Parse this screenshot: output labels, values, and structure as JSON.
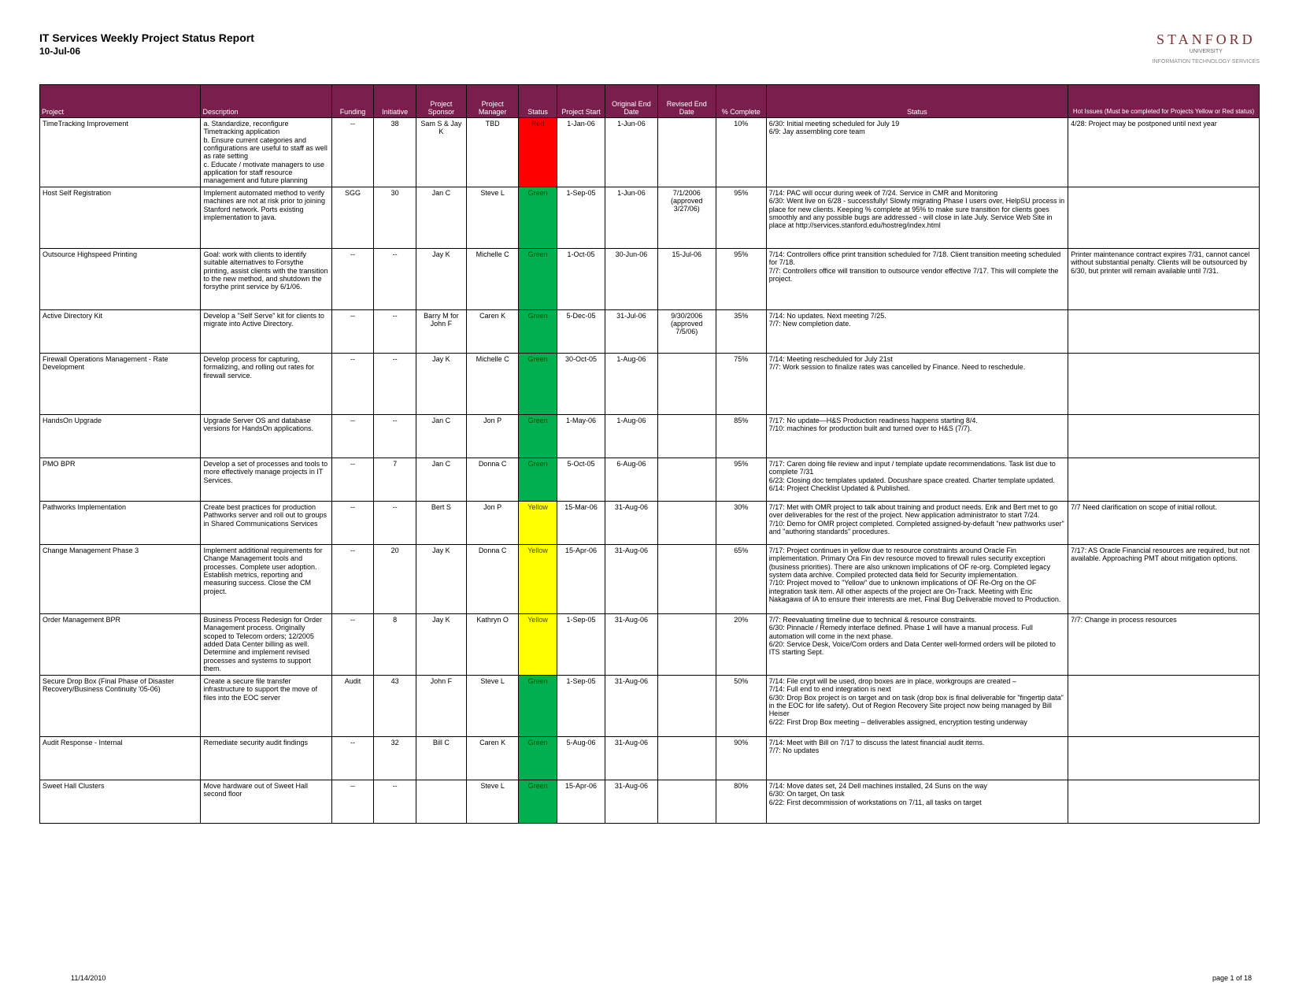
{
  "header": {
    "title": "IT Services Weekly Project Status Report",
    "date": "10-Jul-06",
    "logo_main": "STANFORD",
    "logo_sub": "UNIVERSITY",
    "logo_tag": "INFORMATION TECHNOLOGY SERVICES"
  },
  "colors": {
    "header_bg": "#7a1f4d",
    "status_red": "#ff0000",
    "status_green": "#00b050",
    "status_yellow": "#ffff00"
  },
  "columns": [
    "Project",
    "Description",
    "Funding",
    "Initiative",
    "Project Sponsor",
    "Project Manager",
    "Status",
    "Project Start",
    "Original End Date",
    "Revised End Date",
    "% Complete",
    "Status",
    "Hot Issues (Must be completed for Projects Yellow or Red status)"
  ],
  "rows": [
    {
      "project": "TimeTracking Improvement",
      "desc": "a. Standardize, reconfigure Timetracking application\nb. Ensure current categories and configurations are useful to staff as well as rate setting\nc. Educate / motivate managers to use application for staff resource management and future planning",
      "funding": "--",
      "initiative": "38",
      "sponsor": "Sam S & Jay K",
      "manager": "TBD",
      "status": "Red",
      "status_color": "#ff0000",
      "status_text_color": "#800000",
      "start": "1-Jan-06",
      "end": "1-Jun-06",
      "revised": "",
      "complete": "10%",
      "stxt": "6/30: Initial meeting scheduled for July 19\n6/9: Jay assembling core team",
      "hot": "4/28: Project may be postponed until next year",
      "row_class": "xtall"
    },
    {
      "project": "Host Self Registration",
      "desc": "Implement automated method to verify machines are not at risk prior to joining Stanford network. Ports existing implementation to java.",
      "funding": "SGG",
      "initiative": "30",
      "sponsor": "Jan C",
      "manager": "Steve L",
      "status": "Green",
      "status_color": "#00b050",
      "status_text_color": "#004d00",
      "start": "1-Sep-05",
      "end": "1-Jun-06",
      "revised": "7/1/2006 (approved 3/27/06)",
      "complete": "95%",
      "stxt": "7/14: PAC will occur during week of 7/24.  Service in CMR and Monitoring\n6/30: Went live on 6/28 - successfully!  Slowly migrating Phase I users over, HelpSU process in place for new clients. Keeping % complete at 95% to make sure transition for clients goes smoothly and any possible bugs are addressed - will close in late July. Service Web Site in place at http://services.stanford.edu/hostreg/index.html",
      "hot": "",
      "row_class": "tall"
    },
    {
      "project": "Outsource Highspeed Printing",
      "desc": "Goal: work with clients to identify suitable alternatives to Forsythe printing, assist clients with the transition to the new method, and shutdown the forsythe print service by 6/1/06.",
      "funding": "--",
      "initiative": "--",
      "sponsor": "Jay K",
      "manager": "Michelle C",
      "status": "Green",
      "status_color": "#00b050",
      "status_text_color": "#004d00",
      "start": "1-Oct-05",
      "end": "30-Jun-06",
      "revised": "15-Jul-06",
      "complete": "95%",
      "stxt": "7/14: Controllers office print transition scheduled for 7/18. Client transition meeting scheduled for 7/18.\n7/7: Controllers office will transition to outsource vendor effective 7/17. This will complete the project.",
      "hot": "Printer maintenance contract expires 7/31, cannot cancel without substantial penalty. Clients will be outsourced by 6/30, but printer will remain available until 7/31.",
      "row_class": "tall"
    },
    {
      "project": "Active Directory Kit",
      "desc": "Develop a \"Self Serve\" kit for clients to migrate into Active Directory.",
      "funding": "--",
      "initiative": "--",
      "sponsor": "Barry M for John F",
      "manager": "Caren K",
      "status": "Green",
      "status_color": "#00b050",
      "status_text_color": "#004d00",
      "start": "5-Dec-05",
      "end": "31-Jul-06",
      "revised": "9/30/2006 (approved 7/5/06)",
      "complete": "35%",
      "stxt": "7/14: No updates. Next meeting 7/25.\n7/7: New completion date.",
      "hot": ""
    },
    {
      "project": "Firewall Operations Management - Rate Development",
      "desc": "Develop process for capturing, formalizing, and rolling out rates for firewall service.",
      "funding": "--",
      "initiative": "--",
      "sponsor": "Jay K",
      "manager": "Michelle C",
      "status": "Green",
      "status_color": "#00b050",
      "status_text_color": "#004d00",
      "start": "30-Oct-05",
      "end": "1-Aug-06",
      "revised": "",
      "complete": "75%",
      "stxt": "7/14: Meeting rescheduled for July 21st\n7/7: Work session to finalize rates was cancelled by Finance. Need to reschedule.",
      "hot": "",
      "row_class": "tall"
    },
    {
      "project": "HandsOn Upgrade",
      "desc": "Upgrade Server OS and database versions for HandsOn applications.",
      "funding": "--",
      "initiative": "--",
      "sponsor": "Jan C",
      "manager": "Jon P",
      "status": "Green",
      "status_color": "#00b050",
      "status_text_color": "#004d00",
      "start": "1-May-06",
      "end": "1-Aug-06",
      "revised": "",
      "complete": "85%",
      "stxt": "7/17: No update—H&S Production readiness happens starting 8/4.\n7/10: machines for production built and turned over to H&S (7/7).",
      "hot": "",
      "row_class": ""
    },
    {
      "project": "PMO BPR",
      "desc": "Develop a set of processes and tools to more effectively manage projects in IT Services.",
      "funding": "--",
      "initiative": "7",
      "sponsor": "Jan C",
      "manager": "Donna C",
      "status": "Green",
      "status_color": "#00b050",
      "status_text_color": "#004d00",
      "start": "5-Oct-05",
      "end": "6-Aug-06",
      "revised": "",
      "complete": "95%",
      "stxt": "7/17: Caren doing file review and input / template update recommendations. Task list due to complete 7/31\n6/23: Closing doc templates updated.  Docushare space created. Charter template updated.\n6/14: Project Checklist Updated & Published.",
      "hot": ""
    },
    {
      "project": "Pathworks Implementation",
      "desc": "Create best practices for production Pathworks server and roll out to groups in Shared Communications Services",
      "funding": "--",
      "initiative": "--",
      "sponsor": "Bert S",
      "manager": "Jon P",
      "status": "Yellow",
      "status_color": "#ffff00",
      "status_text_color": "#444400",
      "start": "15-Mar-06",
      "end": "31-Aug-06",
      "revised": "",
      "complete": "30%",
      "stxt": "7/17: Met with OMR project to talk about training and product needs.  Erik and Bert met to go over deliverables for the rest of the project.  New application administrator to start 7/24.\n7/10: Demo for OMR project completed. Completed assigned-by-default \"new pathworks user\" and \"authoring standards\" procedures.",
      "hot": "7/7 Need clarification on scope of initial rollout."
    },
    {
      "project": "Change Management Phase 3",
      "desc": "Implement additional requirements for Change Management tools and processes.  Complete user adoption.  Establish metrics, reporting and measuring success.  Close the CM project.",
      "funding": "--",
      "initiative": "20",
      "sponsor": "Jay K",
      "manager": "Donna C",
      "status": "Yellow",
      "status_color": "#ffff00",
      "status_text_color": "#444400",
      "start": "15-Apr-06",
      "end": "31-Aug-06",
      "revised": "",
      "complete": "65%",
      "stxt": "7/17: Project continues in yellow due to resource constraints around Oracle Fin implementation. Primary Ora Fin dev resource moved to firewall rules security exception (business priorities). There are also unknown implications of OF re-org. Completed legacy system data archive. Compiled protected data field for Security implementation.\n7/10: Project moved to \"Yellow\" due to unknown implications of OF Re-Org on the OF integration task item.  All other aspects of the project are On-Track.  Meeting with Eric Nakagawa of IA to ensure their interests are met.  Final Bug Deliverable moved to Production.",
      "hot": "7/17: AS Oracle Financial resources are required, but not available. Approaching PMT about mitigation options.",
      "row_class": "xtall"
    },
    {
      "project": "Order Management BPR",
      "desc": "Business Process Redesign for Order Management process. Originally scoped to Telecom orders; 12/2005 added Data Center billing as well. Determine and implement revised processes and systems to support them.",
      "funding": "--",
      "initiative": "8",
      "sponsor": "Jay K",
      "manager": "Kathryn O",
      "status": "Yellow",
      "status_color": "#ffff00",
      "status_text_color": "#444400",
      "start": "1-Sep-05",
      "end": "31-Aug-06",
      "revised": "",
      "complete": "20%",
      "stxt": "7/7: Reevaluating timeline due to technical & resource constraints.\n6/30: Pinnacle / Remedy interface defined.  Phase 1 will have a manual process.  Full automation will come in the next phase.\n6/20: Service Desk, Voice/Com orders and Data Center well-formed orders will be piloted to ITS starting Sept.",
      "hot": "7/7: Change in process resources",
      "row_class": "tall"
    },
    {
      "project": "Secure Drop Box (Final Phase of Disaster Recovery/Business Continuity '05-06)",
      "desc": "Create a secure file transfer infrastructure to support the move of files into the EOC server",
      "funding": "Audit",
      "initiative": "43",
      "sponsor": "John F",
      "manager": "Steve L",
      "status": "Green",
      "status_color": "#00b050",
      "status_text_color": "#004d00",
      "start": "1-Sep-05",
      "end": "31-Aug-06",
      "revised": "",
      "complete": "50%",
      "stxt": "7/14: File crypt will be used, drop boxes are in place, workgroups are created –\n7/14: Full end to end integration is next\n6/30: Drop Box project is on target and on task (drop box is final deliverable for \"fingertip data\" in the EOC for life safety). Out of Region Recovery Site project now being managed by Bill Heiser\n6/22: First Drop Box meeting – deliverables assigned, encryption testing underway",
      "hot": "",
      "row_class": "tall"
    },
    {
      "project": "Audit Response - Internal",
      "desc": "Remediate security audit findings",
      "funding": "--",
      "initiative": "32",
      "sponsor": "Bill C",
      "manager": "Caren K",
      "status": "Green",
      "status_color": "#00b050",
      "status_text_color": "#004d00",
      "start": "5-Aug-06",
      "end": "31-Aug-06",
      "revised": "",
      "complete": "90%",
      "stxt": "7/14: Meet with Bill on 7/17 to discuss the latest financial audit items.\n7/7: No updates",
      "hot": ""
    },
    {
      "project": "Sweet Hall Clusters",
      "desc": "Move hardware out of Sweet Hall second floor",
      "funding": "--",
      "initiative": "--",
      "sponsor": "",
      "manager": "Steve L",
      "status": "Green",
      "status_color": "#00b050",
      "status_text_color": "#004d00",
      "start": "15-Apr-06",
      "end": "31-Aug-06",
      "revised": "",
      "complete": "80%",
      "stxt": "7/14: Move dates set, 24 Dell machines installed, 24 Suns on the way\n6/30: On target, On task\n6/22: First decommission of workstations on 7/11, all tasks on target",
      "hot": ""
    }
  ],
  "footer": {
    "left": "11/14/2010",
    "right": "page 1 of 18"
  }
}
